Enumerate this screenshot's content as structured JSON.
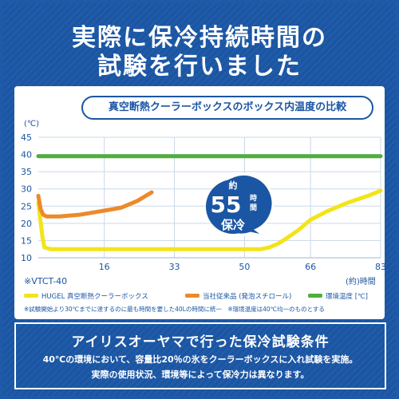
{
  "headline": {
    "line1": "実際に保冷持続時間の",
    "line2": "試験を行いました"
  },
  "chart_panel": {
    "title": "真空断熱クーラーボックスのボックス内温度の比較",
    "y_unit": "(℃)",
    "x_unit": "(約)時間",
    "model_note": "※VTCT-40",
    "callout": {
      "line1": "約",
      "line2": "55",
      "line2_suffix": "時間",
      "line3": "保冷"
    },
    "footnote": "※試験開始より30℃までに達するのに最も時間を要した40Lの時間に統一　※環境温度は40℃均一のものとする"
  },
  "chart_data": {
    "type": "line",
    "title": "真空断熱クーラーボックスのボックス内温度の比較",
    "xlabel": "(約)時間",
    "ylabel": "(℃)",
    "xlim": [
      0,
      83
    ],
    "ylim": [
      10,
      45
    ],
    "x_ticks": [
      16,
      33,
      50,
      66,
      83
    ],
    "y_ticks": [
      10,
      15,
      20,
      25,
      30,
      35,
      40,
      45
    ],
    "grid": true,
    "legend_position": "bottom",
    "series": [
      {
        "name": "HUGEL 真空断熱クーラーボックス",
        "color": "#f2e419",
        "x": [
          0,
          0.5,
          1,
          1.5,
          3,
          10,
          20,
          30,
          40,
          50,
          54,
          56,
          58,
          60,
          63,
          66,
          70,
          75,
          80,
          83
        ],
        "y": [
          26,
          21,
          16,
          13,
          12.5,
          12.5,
          12.5,
          12.5,
          12.5,
          12.5,
          12.5,
          13,
          14,
          15.5,
          18,
          21,
          23.5,
          26,
          28,
          29.5
        ]
      },
      {
        "name": "当社従来品 (発泡スチロール)",
        "color": "#ec8a2a",
        "x": [
          0,
          0.6,
          1.2,
          2,
          5,
          10,
          15,
          20,
          24,
          27.5
        ],
        "y": [
          28,
          24,
          22.5,
          22,
          22,
          22.5,
          23.5,
          24.5,
          26.5,
          29
        ]
      },
      {
        "name": "環境温度 [℃]",
        "color": "#4fae3d",
        "x": [
          0,
          83
        ],
        "y": [
          39.5,
          39.5
        ]
      }
    ]
  },
  "conditions": {
    "title": "アイリスオーヤマで行った保冷試験条件",
    "line1": "40℃の環境において、容量比20％の氷をクーラーボックスに入れ試験を実施。",
    "line2": "実際の使用状況、環境等によって保冷力は異なります。"
  },
  "colors": {
    "background": "#1b56a4",
    "grid": "#c9d8ea",
    "axis_text": "#1b56a4",
    "callout": "#1b56a4"
  }
}
